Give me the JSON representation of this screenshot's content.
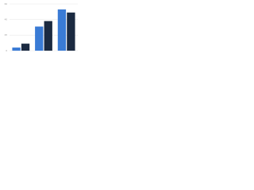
{
  "chart_data": {
    "type": "bar",
    "categories": [
      null,
      null,
      null
    ],
    "series": [
      {
        "color": "#3a7bd5",
        "values": [
          4,
          31,
          53
        ]
      },
      {
        "color": "#1b2a41",
        "values": [
          9,
          38,
          49
        ]
      }
    ],
    "ylim": [
      0,
      60
    ],
    "yticks": [
      0,
      20,
      40,
      60
    ],
    "grid": true
  }
}
